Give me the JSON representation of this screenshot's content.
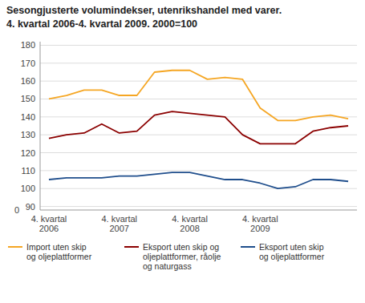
{
  "chart_data": {
    "type": "line",
    "title": "Sesongjusterte volumindekser, utenrikshandel med varer.",
    "subtitle": "4. kvartal 2006-4. kvartal 2009. 2000=100",
    "categories": [
      "4. kvartal\n2006",
      null,
      null,
      null,
      "4. kvartal\n2007",
      null,
      null,
      null,
      "4. kvartal\n2008",
      null,
      null,
      null,
      "4. kvartal\n2009",
      null,
      null,
      null,
      null,
      null
    ],
    "ylim": [
      88,
      182
    ],
    "yticks": [
      90,
      100,
      110,
      120,
      130,
      140,
      150,
      160,
      170,
      180
    ],
    "grid": true,
    "legend": "bottom",
    "annotations": [
      {
        "text": "0",
        "y": 88
      }
    ],
    "series": [
      {
        "name": "Import uten skip\nog oljeplattformer",
        "color": "#F5A623",
        "values": [
          150,
          152,
          155,
          155,
          152,
          152,
          165,
          166,
          166,
          161,
          162,
          161,
          145,
          138,
          138,
          140,
          141,
          139
        ]
      },
      {
        "name": "Eksport uten skip og\noljeplattformer, råolje\nog naturgass",
        "color": "#8B0000",
        "values": [
          128,
          130,
          131,
          136,
          131,
          132,
          141,
          143,
          142,
          141,
          140,
          130,
          125,
          125,
          125,
          132,
          134,
          135
        ]
      },
      {
        "name": "Eksport uten skip\nog oljeplattformer",
        "color": "#1F4E8C",
        "values": [
          105,
          106,
          106,
          106,
          107,
          107,
          108,
          109,
          109,
          107,
          105,
          105,
          103,
          100,
          101,
          105,
          105,
          104
        ]
      }
    ]
  }
}
